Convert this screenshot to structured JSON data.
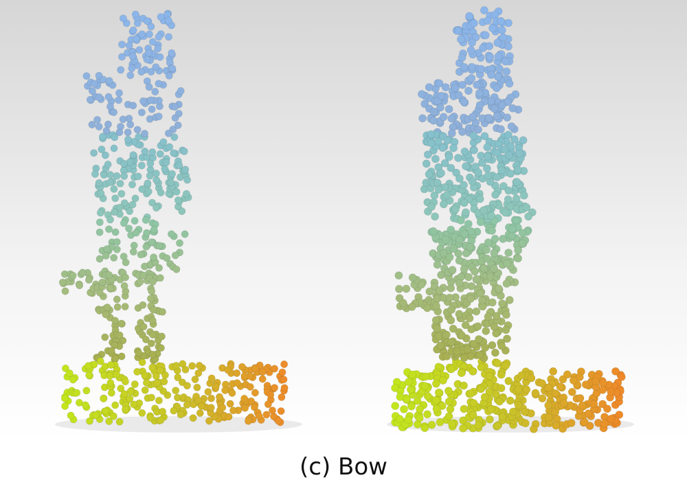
{
  "figure": {
    "caption": "(c) Bow",
    "panels": [
      {
        "id": "left",
        "description_key": "sparse"
      },
      {
        "id": "right",
        "description_key": "dense"
      }
    ],
    "colors": {
      "head": "#8fb8e6",
      "torso": "#7fc4c8",
      "legs": "#9bc07a",
      "floor_left": "#c6e02a",
      "floor_right": "#f08a2c",
      "background_top": "#d8d8d8",
      "background_bottom": "#ffffff"
    }
  }
}
